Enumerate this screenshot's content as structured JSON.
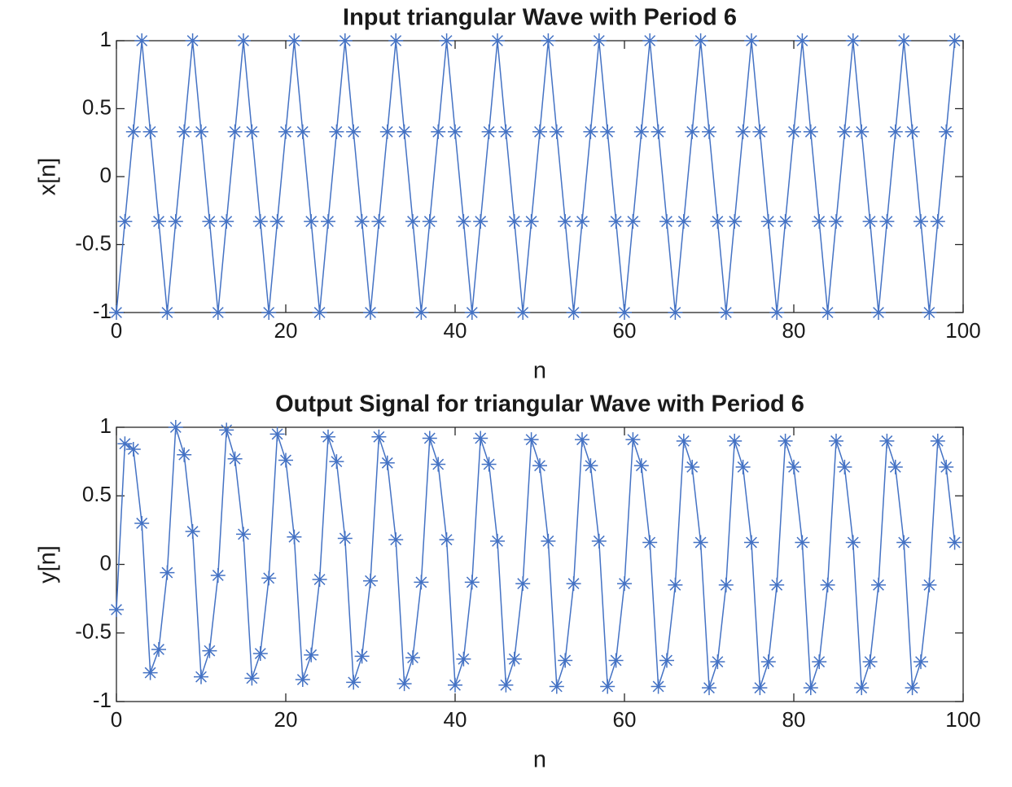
{
  "chart_data": [
    {
      "type": "line",
      "title": "Input triangular Wave with Period 6",
      "xlabel": "n",
      "ylabel": "x[n]",
      "color": "#4472c4",
      "x": [
        0,
        1,
        2,
        3,
        4,
        5,
        6,
        7,
        8,
        9,
        10,
        11,
        12,
        13,
        14,
        15,
        16,
        17,
        18,
        19,
        20,
        21,
        22,
        23,
        24,
        25,
        26,
        27,
        28,
        29,
        30,
        31,
        32,
        33,
        34,
        35,
        36,
        37,
        38,
        39,
        40,
        41,
        42,
        43,
        44,
        45,
        46,
        47,
        48,
        49,
        50,
        51,
        52,
        53,
        54,
        55,
        56,
        57,
        58,
        59,
        60,
        61,
        62,
        63,
        64,
        65,
        66,
        67,
        68,
        69,
        70,
        71,
        72,
        73,
        74,
        75,
        76,
        77,
        78,
        79,
        80,
        81,
        82,
        83,
        84,
        85,
        86,
        87,
        88,
        89,
        90,
        91,
        92,
        93,
        94,
        95,
        96,
        97,
        98,
        99
      ],
      "values": [
        -1,
        -0.33,
        0.33,
        1,
        0.33,
        -0.33,
        -1,
        -0.33,
        0.33,
        1,
        0.33,
        -0.33,
        -1,
        -0.33,
        0.33,
        1,
        0.33,
        -0.33,
        -1,
        -0.33,
        0.33,
        1,
        0.33,
        -0.33,
        -1,
        -0.33,
        0.33,
        1,
        0.33,
        -0.33,
        -1,
        -0.33,
        0.33,
        1,
        0.33,
        -0.33,
        -1,
        -0.33,
        0.33,
        1,
        0.33,
        -0.33,
        -1,
        -0.33,
        0.33,
        1,
        0.33,
        -0.33,
        -1,
        -0.33,
        0.33,
        1,
        0.33,
        -0.33,
        -1,
        -0.33,
        0.33,
        1,
        0.33,
        -0.33,
        -1,
        -0.33,
        0.33,
        1,
        0.33,
        -0.33,
        -1,
        -0.33,
        0.33,
        1,
        0.33,
        -0.33,
        -1,
        -0.33,
        0.33,
        1,
        0.33,
        -0.33,
        -1,
        -0.33,
        0.33,
        1,
        0.33,
        -0.33,
        -1,
        -0.33,
        0.33,
        1,
        0.33,
        -0.33,
        -1,
        -0.33,
        0.33,
        1,
        0.33,
        -0.33,
        -1,
        -0.33,
        0.33,
        1
      ],
      "xlim": [
        0,
        100
      ],
      "xticks": [
        0,
        20,
        40,
        60,
        80,
        100
      ],
      "ylim": [
        -1,
        1
      ],
      "yticks": [
        -1,
        -0.5,
        0,
        0.5,
        1
      ]
    },
    {
      "type": "line",
      "title": "Output Signal for triangular Wave with Period 6",
      "xlabel": "n",
      "ylabel": "y[n]",
      "color": "#4472c4",
      "x": [
        0,
        1,
        2,
        3,
        4,
        5,
        6,
        7,
        8,
        9,
        10,
        11,
        12,
        13,
        14,
        15,
        16,
        17,
        18,
        19,
        20,
        21,
        22,
        23,
        24,
        25,
        26,
        27,
        28,
        29,
        30,
        31,
        32,
        33,
        34,
        35,
        36,
        37,
        38,
        39,
        40,
        41,
        42,
        43,
        44,
        45,
        46,
        47,
        48,
        49,
        50,
        51,
        52,
        53,
        54,
        55,
        56,
        57,
        58,
        59,
        60,
        61,
        62,
        63,
        64,
        65,
        66,
        67,
        68,
        69,
        70,
        71,
        72,
        73,
        74,
        75,
        76,
        77,
        78,
        79,
        80,
        81,
        82,
        83,
        84,
        85,
        86,
        87,
        88,
        89,
        90,
        91,
        92,
        93,
        94,
        95,
        96,
        97,
        98,
        99
      ],
      "values": [
        -0.33,
        0.88,
        0.84,
        0.3,
        -0.79,
        -0.62,
        -0.06,
        1,
        0.8,
        0.24,
        -0.82,
        -0.63,
        -0.08,
        0.98,
        0.77,
        0.22,
        -0.83,
        -0.65,
        -0.1,
        0.95,
        0.76,
        0.2,
        -0.84,
        -0.66,
        -0.11,
        0.93,
        0.75,
        0.19,
        -0.86,
        -0.67,
        -0.12,
        0.93,
        0.74,
        0.18,
        -0.87,
        -0.68,
        -0.13,
        0.92,
        0.73,
        0.18,
        -0.88,
        -0.69,
        -0.13,
        0.92,
        0.73,
        0.17,
        -0.88,
        -0.69,
        -0.14,
        0.91,
        0.72,
        0.17,
        -0.89,
        -0.7,
        -0.14,
        0.91,
        0.72,
        0.17,
        -0.89,
        -0.7,
        -0.14,
        0.91,
        0.72,
        0.16,
        -0.89,
        -0.7,
        -0.15,
        0.9,
        0.71,
        0.16,
        -0.9,
        -0.71,
        -0.15,
        0.9,
        0.71,
        0.16,
        -0.9,
        -0.71,
        -0.15,
        0.9,
        0.71,
        0.16,
        -0.9,
        -0.71,
        -0.15,
        0.9,
        0.71,
        0.16,
        -0.9,
        -0.71,
        -0.15,
        0.9,
        0.71,
        0.16,
        -0.9,
        -0.71,
        -0.15,
        0.9,
        0.71,
        0.16
      ],
      "xlim": [
        0,
        100
      ],
      "xticks": [
        0,
        20,
        40,
        60,
        80,
        100
      ],
      "ylim": [
        -1,
        1
      ],
      "yticks": [
        -1,
        -0.5,
        0,
        0.5,
        1
      ]
    }
  ]
}
